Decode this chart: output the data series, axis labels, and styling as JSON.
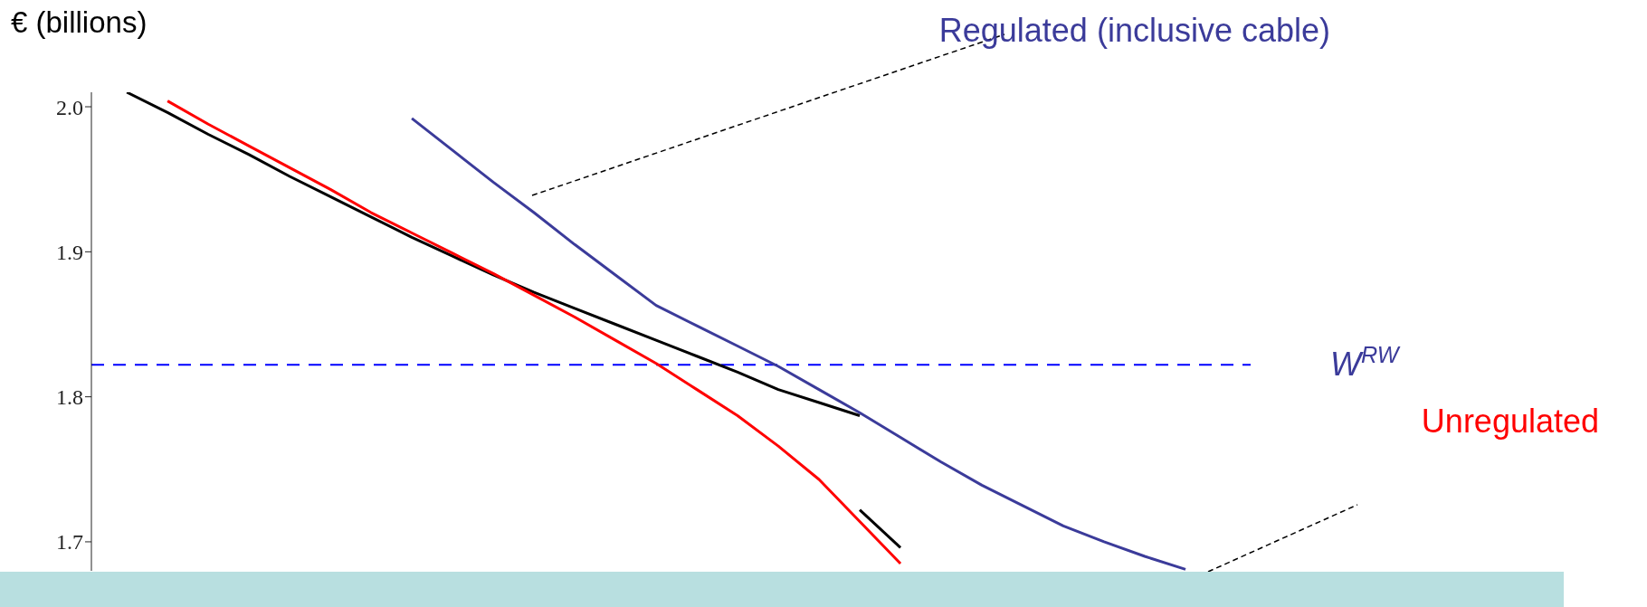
{
  "chart_data": {
    "type": "line",
    "ylabel": "€ (billions)",
    "categories": [
      null,
      null,
      null,
      null,
      null,
      null,
      null,
      null,
      null,
      null,
      null,
      null,
      null,
      null,
      null,
      null,
      null,
      null,
      null,
      null,
      null,
      null,
      null,
      null,
      null,
      null,
      null
    ],
    "series": [
      {
        "color": "#000000",
        "values": [
          2.01,
          1.996,
          1.981,
          1.967,
          1.952,
          1.938,
          1.924,
          1.91,
          1.897,
          1.884,
          1.872,
          1.861,
          1.85,
          1.839,
          1.828,
          1.817,
          1.805,
          1.796,
          1.787,
          null,
          null,
          null,
          null,
          null,
          null,
          null,
          null
        ]
      },
      {
        "color": "#000000",
        "values": [
          null,
          null,
          null,
          null,
          null,
          null,
          null,
          null,
          null,
          null,
          null,
          null,
          null,
          null,
          null,
          null,
          null,
          null,
          1.722,
          1.696,
          null,
          null,
          null,
          null,
          null,
          null,
          null
        ]
      },
      {
        "name": "Regulated (inclusive cable)",
        "color": "#3b3b9a",
        "values": [
          null,
          null,
          null,
          null,
          null,
          null,
          null,
          1.992,
          1.97,
          1.948,
          1.927,
          1.905,
          1.884,
          1.863,
          1.849,
          1.835,
          1.821,
          1.805,
          1.789,
          1.772,
          1.755,
          1.739,
          1.725,
          1.711,
          1.7,
          1.69,
          1.681
        ]
      },
      {
        "name": "Unregulated",
        "color": "#ff0000",
        "values": [
          null,
          2.004,
          1.988,
          1.973,
          1.958,
          1.943,
          1.927,
          1.913,
          1.899,
          1.885,
          1.87,
          1.855,
          1.839,
          1.823,
          1.805,
          1.787,
          1.766,
          1.743,
          1.714,
          1.685,
          null,
          null,
          null,
          null,
          null,
          null,
          null
        ]
      }
    ],
    "ylim": [
      1.68,
      2.01
    ],
    "yticks": [
      {
        "value": 1.7,
        "label": "1.7"
      },
      {
        "value": 1.8,
        "label": "1.8"
      },
      {
        "value": 1.9,
        "label": "1.9"
      },
      {
        "value": 2.0,
        "label": "2.0"
      }
    ],
    "marker": "none",
    "line_style": "solid",
    "ref_lines": [
      {
        "axis": "y",
        "value": 1.822,
        "label": "W$^{RW}$",
        "color": "#0000ff",
        "line_style": "dashed"
      }
    ]
  }
}
